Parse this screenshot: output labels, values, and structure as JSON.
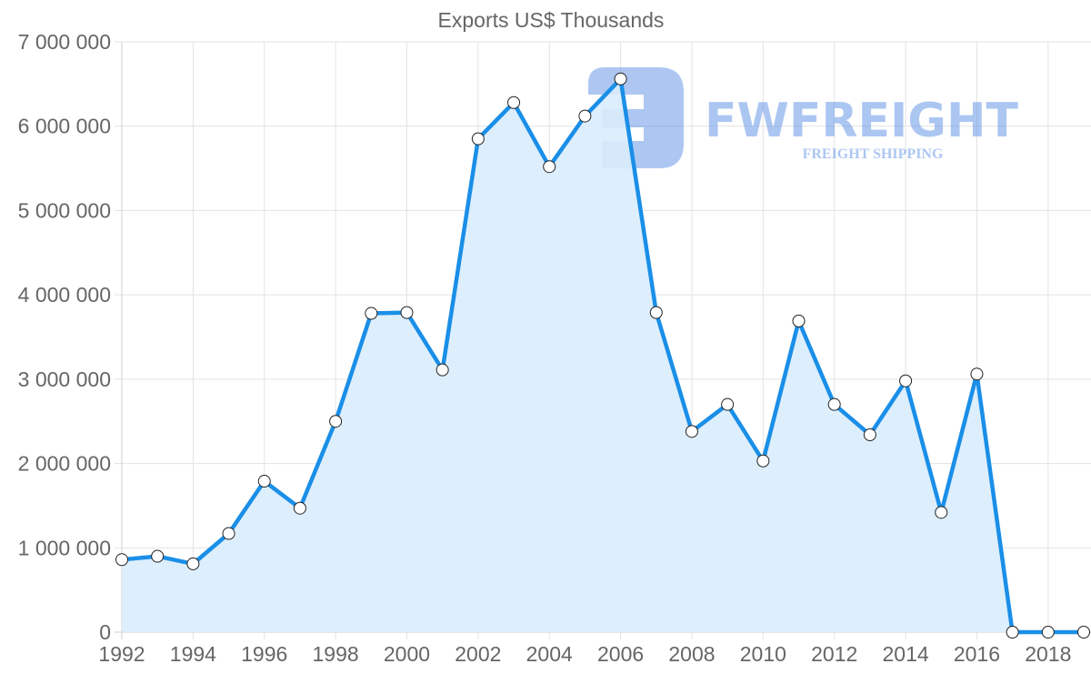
{
  "chart_data": {
    "type": "line",
    "title": "Exports US$ Thousands",
    "xlabel": "",
    "ylabel": "",
    "x": [
      1992,
      1993,
      1994,
      1995,
      1996,
      1997,
      1998,
      1999,
      2000,
      2001,
      2002,
      2003,
      2004,
      2005,
      2006,
      2007,
      2008,
      2009,
      2010,
      2011,
      2012,
      2013,
      2014,
      2015,
      2016,
      2017,
      2018,
      2019
    ],
    "series": [
      {
        "name": "Exports US$ Thousands",
        "values": [
          860000,
          900000,
          810000,
          1170000,
          1790000,
          1470000,
          2500000,
          3780000,
          3790000,
          3110000,
          5850000,
          6280000,
          5520000,
          6120000,
          6560000,
          3790000,
          2380000,
          2700000,
          2030000,
          3690000,
          2700000,
          2340000,
          2980000,
          1420000,
          3060000,
          0,
          0,
          0
        ],
        "color": "#1a8fe8",
        "fill": "#d9ecfc",
        "filled": true,
        "markers": true
      }
    ],
    "ylim": [
      0,
      7000000
    ],
    "yticks": [
      0,
      1000000,
      2000000,
      3000000,
      4000000,
      5000000,
      6000000,
      7000000
    ],
    "ytick_labels": [
      "0",
      "1 000 000",
      "2 000 000",
      "3 000 000",
      "4 000 000",
      "5 000 000",
      "6 000 000",
      "7 000 000"
    ],
    "xticks": [
      1992,
      1994,
      1996,
      1998,
      2000,
      2002,
      2004,
      2006,
      2008,
      2010,
      2012,
      2014,
      2016,
      2018
    ],
    "xtick_labels": [
      "1992",
      "1994",
      "1996",
      "1998",
      "2000",
      "2002",
      "2004",
      "2006",
      "2008",
      "2010",
      "2012",
      "2014",
      "2016",
      "2018"
    ],
    "grid": true,
    "legend": "none"
  },
  "watermark": {
    "brand": "FWFREIGHT",
    "tagline": "FREIGHT SHIPPING",
    "color": "#5b8fe6"
  }
}
